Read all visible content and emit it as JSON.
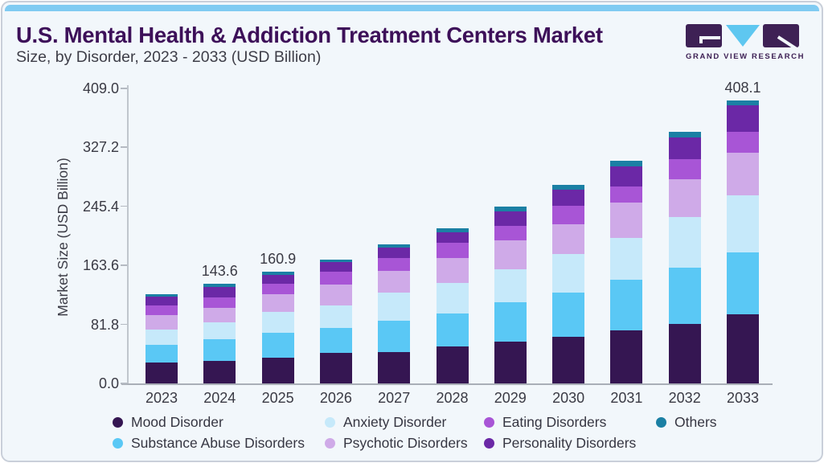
{
  "header": {
    "title": "U.S. Mental Health & Addiction Treatment Centers Market",
    "subtitle": "Size, by Disorder, 2023 - 2033 (USD Billion)",
    "logo_text": "GRAND VIEW RESEARCH",
    "title_color": "#3d1059",
    "accent_strip_color": "#80cbf2",
    "logo_purple": "#3e2155",
    "logo_blue": "#5ec7f0"
  },
  "chart_data": {
    "type": "bar",
    "stacked": true,
    "title": "U.S. Mental Health & Addiction Treatment Centers Market Size, by Disorder, 2023 - 2033 (USD Billion)",
    "xlabel": "",
    "ylabel": "Market Size (USD Billion)",
    "ylim": [
      0,
      409
    ],
    "grid": false,
    "legend_position": "bottom",
    "categories": [
      "2023",
      "2024",
      "2025",
      "2026",
      "2027",
      "2028",
      "2029",
      "2030",
      "2031",
      "2032",
      "2033"
    ],
    "y_ticks": [
      "0.0",
      "81.8",
      "163.6",
      "245.4",
      "327.2",
      "409.0"
    ],
    "value_labels": {
      "2024": "143.6",
      "2025": "160.9",
      "2033": "408.1"
    },
    "totals": [
      129.1,
      143.6,
      160.9,
      178.9,
      200.9,
      223.9,
      255.0,
      286.9,
      321.9,
      363.3,
      408.1
    ],
    "series": [
      {
        "name": "Mood Disorder",
        "color": "#351652",
        "values": [
          29.8,
          32.2,
          37.6,
          43.5,
          45.6,
          52.9,
          60.0,
          67.3,
          76.9,
          86.2,
          99.8
        ]
      },
      {
        "name": "Substance Abuse Disorders",
        "color": "#5ac8f5",
        "values": [
          26.3,
          31.5,
          34.9,
          36.0,
          44.4,
          48.4,
          56.9,
          63.8,
          72.8,
          80.9,
          89.7
        ]
      },
      {
        "name": "Anxiety Disorder",
        "color": "#c6e9fa",
        "values": [
          22.0,
          24.0,
          30.3,
          32.8,
          40.6,
          43.7,
          48.3,
          55.3,
          60.7,
          72.8,
          82.4
        ]
      },
      {
        "name": "Psychotic Disorders",
        "color": "#cfaae8",
        "values": [
          20.5,
          21.4,
          26.0,
          30.2,
          31.7,
          36.0,
          41.8,
          43.3,
          50.4,
          54.9,
          60.7
        ]
      },
      {
        "name": "Eating Disorders",
        "color": "#a855d6",
        "values": [
          14.3,
          15.5,
          15.5,
          18.2,
          18.6,
          22.0,
          20.2,
          27.0,
          23.6,
          29.0,
          31.0
        ]
      },
      {
        "name": "Personality Disorders",
        "color": "#6b28a6",
        "values": [
          12.4,
          14.8,
          12.1,
          14.3,
          15.4,
          15.1,
          21.2,
          22.5,
          28.7,
          31.0,
          37.6
        ]
      },
      {
        "name": "Others",
        "color": "#1b80a4",
        "values": [
          3.8,
          4.2,
          4.5,
          3.9,
          4.6,
          5.8,
          6.6,
          7.7,
          8.8,
          8.5,
          6.9
        ]
      }
    ],
    "legend_order": [
      "Mood Disorder",
      "Anxiety Disorder",
      "Eating Disorders",
      "Others",
      "Substance Abuse Disorders",
      "Psychotic Disorders",
      "Personality Disorders"
    ]
  }
}
